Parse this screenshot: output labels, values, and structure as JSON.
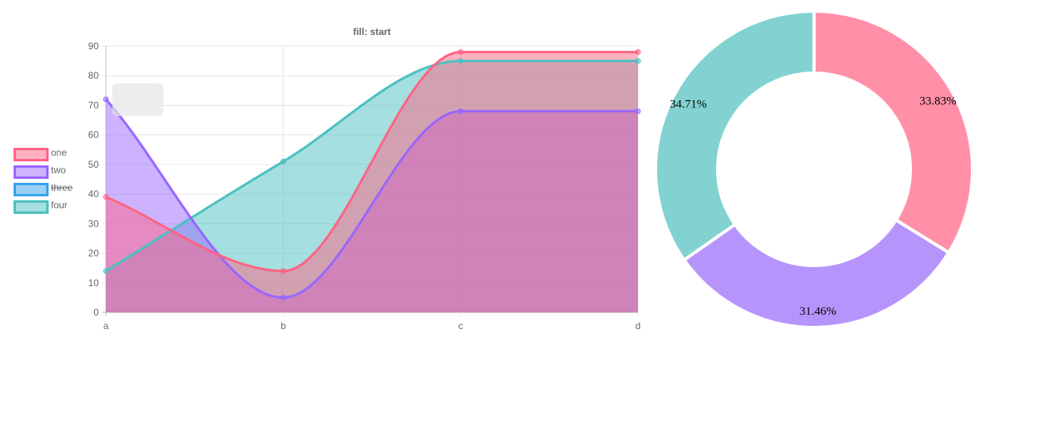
{
  "chart_data": [
    {
      "type": "area",
      "title": "fill: start",
      "categories": [
        "a",
        "b",
        "c",
        "d"
      ],
      "ylim": [
        0,
        90
      ],
      "yticks": [
        0,
        10,
        20,
        30,
        40,
        50,
        60,
        70,
        80,
        90
      ],
      "grid": true,
      "legend_position": "left",
      "series": [
        {
          "name": "one",
          "values": [
            39,
            14,
            88,
            88
          ],
          "border": "#ff6384",
          "fill": "rgba(255,99,132,0.5)",
          "hidden": false
        },
        {
          "name": "two",
          "values": [
            72,
            5,
            68,
            68
          ],
          "border": "#9966ff",
          "fill": "rgba(153,102,255,0.5)",
          "hidden": false
        },
        {
          "name": "three",
          "values": [
            null,
            null,
            null,
            null
          ],
          "border": "#36a2eb",
          "fill": "rgba(54,162,235,0.5)",
          "hidden": true
        },
        {
          "name": "four",
          "values": [
            14,
            51,
            85,
            85
          ],
          "border": "#4bc0c0",
          "fill": "rgba(75,192,192,0.5)",
          "hidden": false
        }
      ]
    },
    {
      "type": "pie",
      "slices": [
        {
          "label": "33.83%",
          "value": 33.83,
          "color": "#ff90a7"
        },
        {
          "label": "31.46%",
          "value": 31.46,
          "color": "#b794fc"
        },
        {
          "label": "34.71%",
          "value": 34.71,
          "color": "#82d2d2"
        }
      ]
    }
  ]
}
